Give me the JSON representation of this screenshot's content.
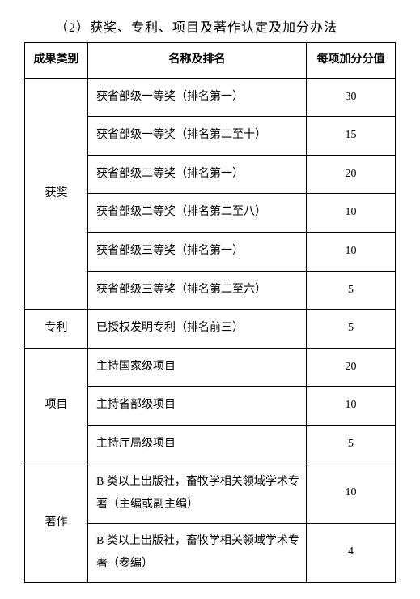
{
  "title": "（2）获奖、专利、项目及著作认定及加分办法",
  "headers": {
    "category": "成果类别",
    "name": "名称及排名",
    "score": "每项加分分值"
  },
  "groups": [
    {
      "category": "获奖",
      "rows": [
        {
          "name": "获省部级一等奖（排名第一）",
          "score": "30"
        },
        {
          "name": "获省部级一等奖（排名第二至十）",
          "score": "15"
        },
        {
          "name": "获省部级二等奖（排名第一）",
          "score": "20"
        },
        {
          "name": "获省部级二等奖（排名第二至八）",
          "score": "10"
        },
        {
          "name": "获省部级三等奖（排名第一）",
          "score": "10"
        },
        {
          "name": "获省部级三等奖（排名第二至六）",
          "score": "5"
        }
      ]
    },
    {
      "category": "专利",
      "rows": [
        {
          "name": "已授权发明专利（排名前三）",
          "score": "5"
        }
      ]
    },
    {
      "category": "项目",
      "rows": [
        {
          "name": "主持国家级项目",
          "score": "20"
        },
        {
          "name": "主持省部级项目",
          "score": "10"
        },
        {
          "name": "主持厅局级项目",
          "score": "5"
        }
      ]
    },
    {
      "category": "著作",
      "rows": [
        {
          "name": "B 类以上出版社，畜牧学相关领域学术专著（主编或副主编）",
          "score": "10",
          "multiline": true
        },
        {
          "name": "B 类以上出版社，畜牧学相关领域学术专著（参编）",
          "score": "4",
          "multiline": true
        }
      ]
    }
  ]
}
